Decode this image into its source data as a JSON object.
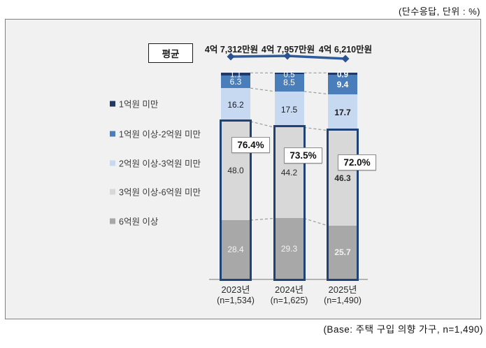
{
  "meta": {
    "top_note": "(단수응답, 단위 : %)",
    "base_note": "(Base: 주택 구입 의향 가구, n=1,490)"
  },
  "legend": [
    {
      "label": "1억원 미만",
      "color": "#1F3864"
    },
    {
      "label": "1억원 이상-2억원 미만",
      "color": "#4A7EBB"
    },
    {
      "label": "2억원 이상-3억원 미만",
      "color": "#C6D9F1"
    },
    {
      "label": "3억원 이상-6억원 미만",
      "color": "#D8D8D8"
    },
    {
      "label": "6억원 이상",
      "color": "#A8A8A8"
    }
  ],
  "chart_data": {
    "type": "bar",
    "stacked": true,
    "unit": "%",
    "title": "",
    "categories": [
      "2023년",
      "2024년",
      "2025년"
    ],
    "category_notes": [
      "(n=1,534)",
      "(n=1,625)",
      "(n=1,490)"
    ],
    "ylim": [
      0,
      100
    ],
    "grid": false,
    "legend_position": "left",
    "series": [
      {
        "name": "1억원 미만",
        "color": "#1F3864",
        "values": [
          1.1,
          0.5,
          0.9
        ],
        "labels": [
          "1.1",
          "0.5",
          "0.9"
        ],
        "label_color": "#FFFFFF"
      },
      {
        "name": "1억원 이상-2억원 미만",
        "color": "#4A7EBB",
        "values": [
          6.3,
          8.5,
          9.4
        ],
        "labels": [
          "6.3",
          "8.5",
          "9.4"
        ],
        "label_color": "#FFFFFF"
      },
      {
        "name": "2억원 이상-3억원 미만",
        "color": "#C6D9F1",
        "values": [
          16.2,
          17.5,
          17.7
        ],
        "labels": [
          "16.2",
          "17.5",
          "17.7"
        ],
        "label_color": "#1a1a1a"
      },
      {
        "name": "3억원 이상-6억원 미만",
        "color": "#D8D8D8",
        "values": [
          48.0,
          44.2,
          46.3
        ],
        "labels": [
          "48.0",
          "44.2",
          "46.3"
        ],
        "label_color": "#2b2b2b"
      },
      {
        "name": "6억원 이상",
        "color": "#A8A8A8",
        "values": [
          28.4,
          29.3,
          25.7
        ],
        "labels": [
          "28.4",
          "29.3",
          "25.7"
        ],
        "label_color": "#F2F2F2"
      }
    ],
    "highlight_group": {
      "series": [
        "3억원 이상-6억원 미만",
        "6억원 이상"
      ],
      "labels": [
        "76.4%",
        "73.5%",
        "72.0%"
      ],
      "values": [
        76.4,
        73.5,
        72.0
      ],
      "border_color": "#1F4377"
    },
    "average_line": {
      "label": "평균",
      "values": [
        "4억 7,312만원",
        "4억 7,957만원",
        "4억 6,210만원"
      ],
      "color": "#2E5B9B"
    }
  }
}
